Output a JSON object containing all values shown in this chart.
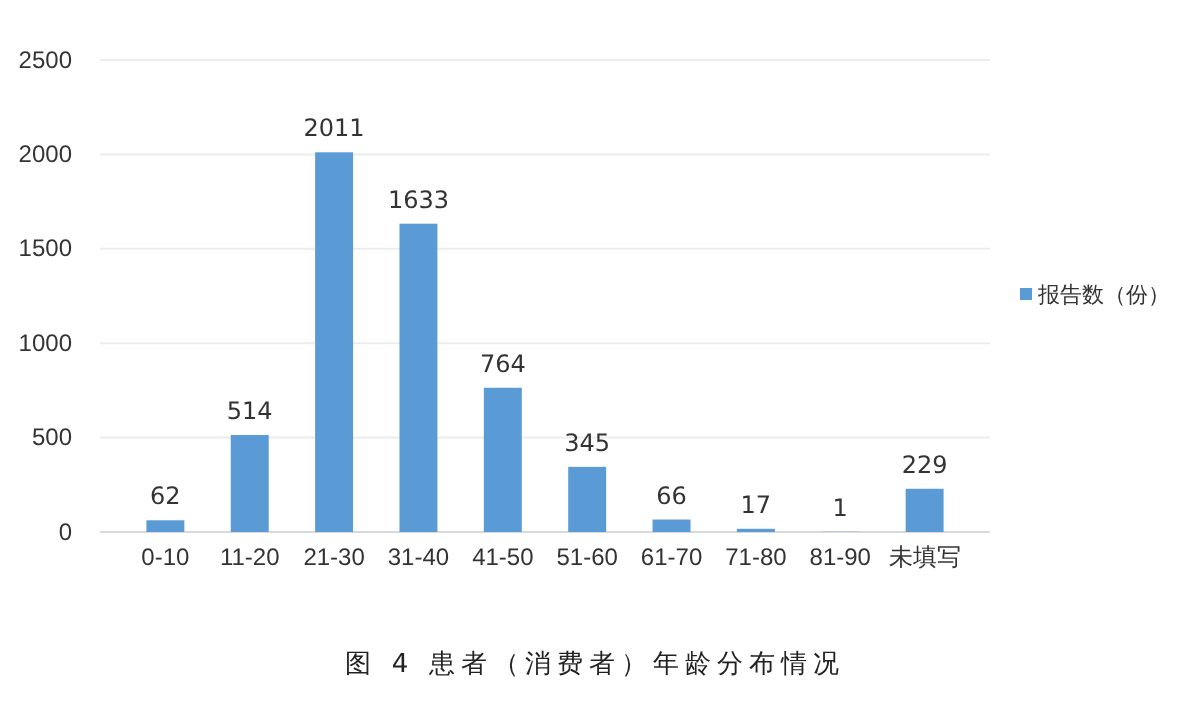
{
  "chart_data": {
    "type": "bar",
    "title": "图 4 患者（消费者）年龄分布情况",
    "categories": [
      "0-10",
      "11-20",
      "21-30",
      "31-40",
      "41-50",
      "51-60",
      "61-70",
      "71-80",
      "81-90",
      "未填写"
    ],
    "series": [
      {
        "name": "报告数（份）",
        "color": "#5b9bd5",
        "values": [
          62,
          514,
          2011,
          1633,
          764,
          345,
          66,
          17,
          1,
          229
        ]
      }
    ],
    "ylim": [
      0,
      2500
    ],
    "yticks": [
      0,
      500,
      1000,
      1500,
      2000,
      2500
    ],
    "grid": "y",
    "legend": "right",
    "data_labels": true
  }
}
